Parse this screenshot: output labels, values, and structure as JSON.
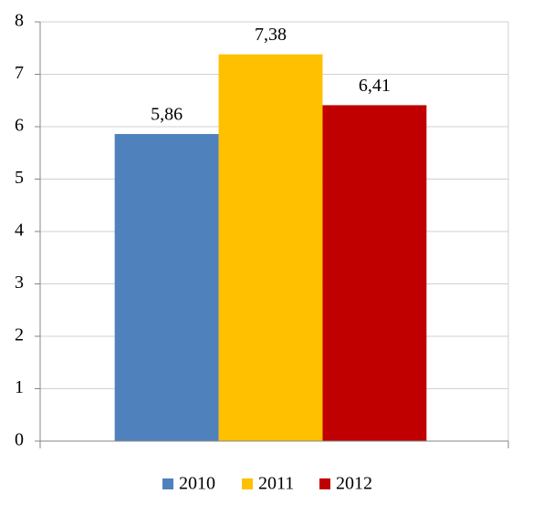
{
  "chart_data": {
    "type": "bar",
    "categories": [
      null
    ],
    "series": [
      {
        "name": "2010",
        "color": "#4f81bd",
        "values": [
          5.86
        ],
        "value_labels": [
          "5,86"
        ]
      },
      {
        "name": "2011",
        "color": "#ffc000",
        "values": [
          7.38
        ],
        "value_labels": [
          "7,38"
        ]
      },
      {
        "name": "2012",
        "color": "#c00000",
        "values": [
          6.41
        ],
        "value_labels": [
          "6,41"
        ]
      }
    ],
    "ylim": [
      0,
      8
    ],
    "yticks": [
      0,
      1,
      2,
      3,
      4,
      5,
      6,
      7,
      8
    ],
    "grid": true,
    "legend": "bottom"
  }
}
